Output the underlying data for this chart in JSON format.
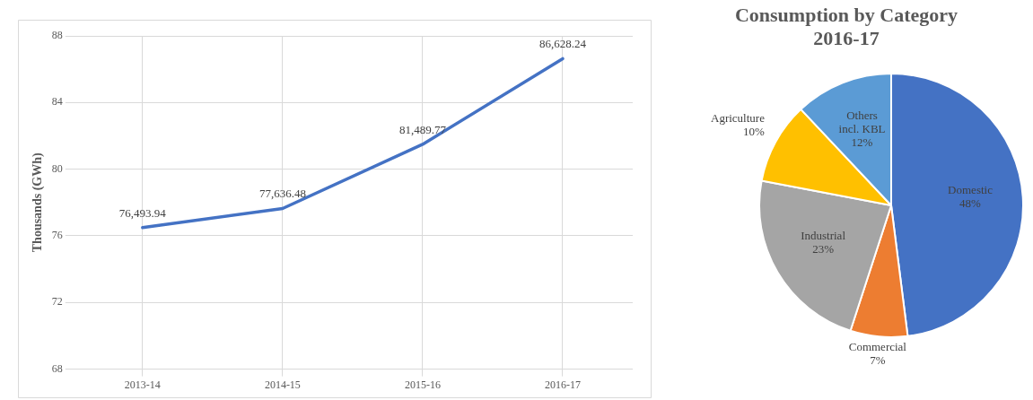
{
  "chart_data": [
    {
      "type": "line",
      "ylabel": "Thousands (GWh)",
      "categories": [
        "2013-14",
        "2014-15",
        "2015-16",
        "2016-17"
      ],
      "series": [
        {
          "color": "#4472c4",
          "values": [
            76.49,
            77.64,
            81.49,
            86.63
          ]
        }
      ],
      "annotations": [
        {
          "text": "76,493.94",
          "x": "2013-14",
          "y": 76.49
        },
        {
          "text": "77,636.48",
          "x": "2014-15",
          "y": 77.64
        },
        {
          "text": "81,489.77",
          "x": "2015-16",
          "y": 81.49
        },
        {
          "text": "86,628.24",
          "x": "2016-17",
          "y": 86.63
        }
      ],
      "ylim": [
        68,
        88
      ],
      "yticks": [
        68,
        72,
        76,
        80,
        84,
        88
      ],
      "grid": true,
      "legend": false,
      "marker": "none",
      "line_style": "solid"
    },
    {
      "type": "pie",
      "title": "Consumption by Category 2016-17",
      "categories": [
        "Domestic",
        "Commercial",
        "Industrial",
        "Agriculture",
        "Others incl. KBL"
      ],
      "values": [
        48,
        7,
        23,
        10,
        12
      ],
      "value_labels": [
        "48%",
        "7%",
        "23%",
        "10%",
        "12%"
      ],
      "colors": [
        "#4472c4",
        "#ed7d31",
        "#a5a5a5",
        "#ffc000",
        "#5b9bd5"
      ],
      "legend": false
    }
  ]
}
